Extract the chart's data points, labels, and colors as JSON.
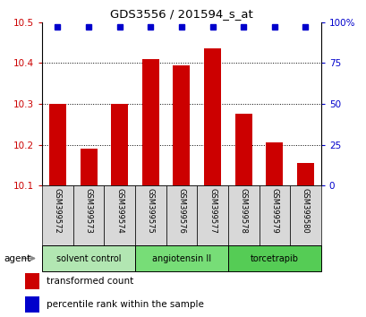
{
  "title": "GDS3556 / 201594_s_at",
  "samples": [
    "GSM399572",
    "GSM399573",
    "GSM399574",
    "GSM399575",
    "GSM399576",
    "GSM399577",
    "GSM399578",
    "GSM399579",
    "GSM399580"
  ],
  "transformed_counts": [
    10.3,
    10.19,
    10.3,
    10.41,
    10.395,
    10.435,
    10.275,
    10.205,
    10.155
  ],
  "percentile_ranks": [
    97,
    97,
    97,
    97,
    97,
    97,
    97,
    97,
    97
  ],
  "ylim_left": [
    10.1,
    10.5
  ],
  "ylim_right": [
    0,
    100
  ],
  "yticks_left": [
    10.1,
    10.2,
    10.3,
    10.4,
    10.5
  ],
  "yticks_right": [
    0,
    25,
    50,
    75,
    100
  ],
  "bar_color": "#cc0000",
  "dot_color": "#0000cc",
  "agent_groups": [
    {
      "label": "solvent control",
      "start": 0,
      "end": 3,
      "color": "#b2e6b2"
    },
    {
      "label": "angiotensin II",
      "start": 3,
      "end": 6,
      "color": "#77dd77"
    },
    {
      "label": "torcetrapib",
      "start": 6,
      "end": 9,
      "color": "#55cc55"
    }
  ],
  "legend_items": [
    {
      "label": "transformed count",
      "color": "#cc0000"
    },
    {
      "label": "percentile rank within the sample",
      "color": "#0000cc"
    }
  ],
  "bar_bottom": 10.1,
  "grid_yticks": [
    10.2,
    10.3,
    10.4
  ],
  "tick_color_left": "#cc0000",
  "tick_color_right": "#0000cc",
  "sample_bg_color": "#d8d8d8",
  "plot_bg_color": "#ffffff",
  "fig_bg_color": "#ffffff"
}
